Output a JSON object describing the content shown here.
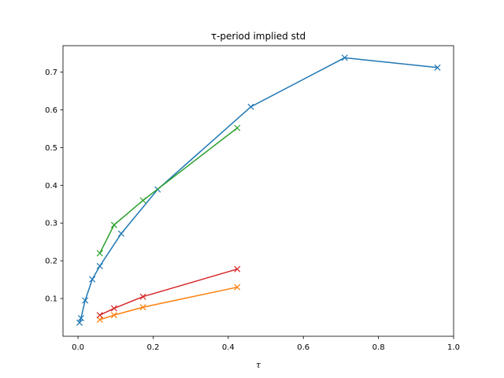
{
  "chart_data": {
    "type": "line",
    "title": "τ-period implied std",
    "xlabel": "τ",
    "ylabel": "",
    "xlim": [
      -0.04,
      1.0
    ],
    "ylim": [
      0.0,
      0.77
    ],
    "xticks": [
      0.0,
      0.2,
      0.4,
      0.6,
      0.8,
      1.0
    ],
    "xtick_labels": [
      "0.0",
      "0.2",
      "0.4",
      "0.6",
      "0.8",
      "1.0"
    ],
    "yticks": [
      0.1,
      0.2,
      0.3,
      0.4,
      0.5,
      0.6,
      0.7
    ],
    "ytick_labels": [
      "0.1",
      "0.2",
      "0.3",
      "0.4",
      "0.5",
      "0.6",
      "0.7"
    ],
    "grid": false,
    "legend": "none",
    "marker": "x",
    "series": [
      {
        "color": "#1f77b4",
        "x": [
          0.004,
          0.008,
          0.019,
          0.038,
          0.058,
          0.115,
          0.212,
          0.46,
          0.71,
          0.957
        ],
        "y": [
          0.036,
          0.048,
          0.095,
          0.151,
          0.186,
          0.272,
          0.389,
          0.608,
          0.738,
          0.712
        ]
      },
      {
        "color": "#ff7f0e",
        "x": [
          0.058,
          0.096,
          0.173,
          0.424
        ],
        "y": [
          0.044,
          0.056,
          0.077,
          0.13
        ]
      },
      {
        "color": "#2ca02c",
        "x": [
          0.058,
          0.096,
          0.173,
          0.424
        ],
        "y": [
          0.22,
          0.295,
          0.36,
          0.552
        ]
      },
      {
        "color": "#d62728",
        "x": [
          0.058,
          0.096,
          0.173,
          0.424
        ],
        "y": [
          0.056,
          0.074,
          0.105,
          0.178
        ]
      }
    ]
  }
}
